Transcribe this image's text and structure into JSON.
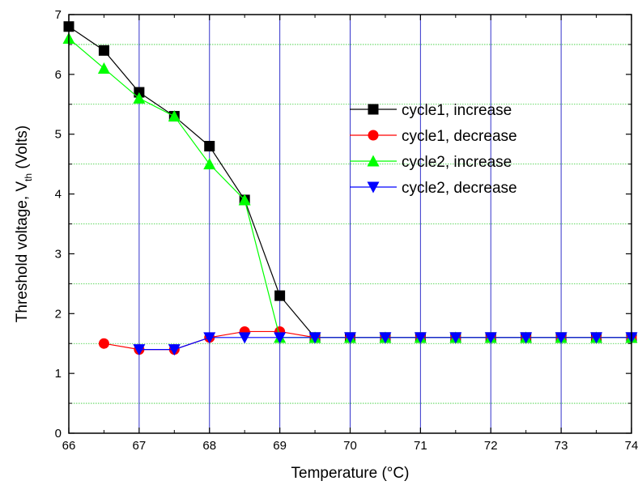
{
  "chart_data": {
    "type": "line",
    "xlabel": "Temperature (°C)",
    "ylabel_main": "Threshold voltage, V",
    "ylabel_sub": "th",
    "ylabel_tail": " (Volts)",
    "xlim": [
      66,
      74
    ],
    "ylim": [
      0,
      7
    ],
    "x_ticks": [
      "66",
      "67",
      "68",
      "69",
      "70",
      "71",
      "72",
      "73",
      "74"
    ],
    "y_ticks": [
      "0",
      "1",
      "2",
      "3",
      "4",
      "5",
      "6",
      "7"
    ],
    "grid": {
      "vertical_lines_x": [
        67,
        68,
        69,
        70,
        71,
        72,
        73
      ],
      "vertical_color": "#3333cc",
      "horizontal_lines_y": [
        0.5,
        1.5,
        2.5,
        3.5,
        4.5,
        5.5,
        6.5
      ],
      "horizontal_color": "#33cc33",
      "horizontal_style": "dotted"
    },
    "legend_position": "top-right",
    "series": [
      {
        "name": "cycle1, increase",
        "color": "#000000",
        "marker": "square",
        "x": [
          66,
          66.5,
          67,
          67.5,
          68,
          68.5,
          69,
          69.5,
          70,
          70.5,
          71,
          71.5,
          72,
          72.5,
          73,
          73.5,
          74
        ],
        "y": [
          6.8,
          6.4,
          5.7,
          5.3,
          4.8,
          3.9,
          2.3,
          1.6,
          1.6,
          1.6,
          1.6,
          1.6,
          1.6,
          1.6,
          1.6,
          1.6,
          1.6
        ]
      },
      {
        "name": "cycle1, decrease",
        "color": "#ff0000",
        "marker": "circle",
        "x": [
          66.5,
          67,
          67.5,
          68,
          68.5,
          69,
          69.5,
          70,
          70.5,
          71,
          71.5,
          72,
          72.5,
          73,
          73.5,
          74
        ],
        "y": [
          1.5,
          1.4,
          1.4,
          1.6,
          1.7,
          1.7,
          1.6,
          1.6,
          1.6,
          1.6,
          1.6,
          1.6,
          1.6,
          1.6,
          1.6,
          1.6
        ]
      },
      {
        "name": "cycle2, increase",
        "color": "#00ff00",
        "marker": "triangle-up",
        "x": [
          66,
          66.5,
          67,
          67.5,
          68,
          68.5,
          69,
          69.5,
          70,
          70.5,
          71,
          71.5,
          72,
          72.5,
          73,
          73.5,
          74
        ],
        "y": [
          6.6,
          6.1,
          5.6,
          5.3,
          4.5,
          3.9,
          1.6,
          1.6,
          1.6,
          1.6,
          1.6,
          1.6,
          1.6,
          1.6,
          1.6,
          1.6,
          1.6
        ]
      },
      {
        "name": "cycle2, decrease",
        "color": "#0000ff",
        "marker": "triangle-down",
        "x": [
          67,
          67.5,
          68,
          68.5,
          69,
          69.5,
          70,
          70.5,
          71,
          71.5,
          72,
          72.5,
          73,
          73.5,
          74
        ],
        "y": [
          1.4,
          1.4,
          1.6,
          1.6,
          1.6,
          1.6,
          1.6,
          1.6,
          1.6,
          1.6,
          1.6,
          1.6,
          1.6,
          1.6,
          1.6
        ]
      }
    ]
  }
}
